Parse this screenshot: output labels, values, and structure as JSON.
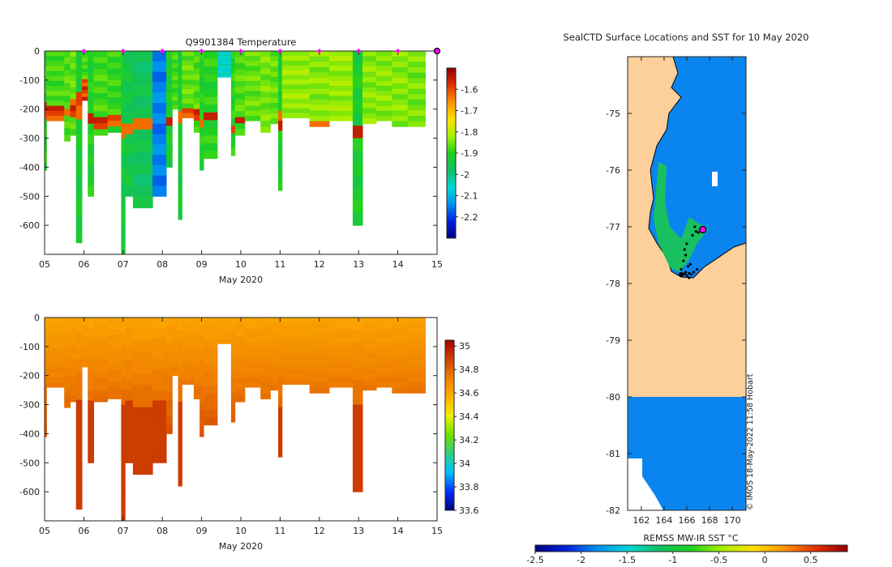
{
  "colors": {
    "land": "#fccf9b",
    "ocean": "#0a85f0",
    "marker": "#ff00ff",
    "temp_stops": [
      "#000080",
      "#0020e0",
      "#0090f0",
      "#00d8d8",
      "#10c060",
      "#20d020",
      "#a8f000",
      "#ffe000",
      "#ff9000",
      "#e03000",
      "#900000"
    ],
    "sal_stops": [
      "#000080",
      "#0030ff",
      "#00c0ff",
      "#30d080",
      "#70e000",
      "#f0f000",
      "#ffb000",
      "#f08000",
      "#d04000",
      "#a00000"
    ]
  },
  "chart_data": [
    {
      "type": "heatmap",
      "id": "temperature",
      "title": "Q9901384  Temperature",
      "xlabel": "May 2020",
      "ylabel": "",
      "xlim": [
        5,
        15
      ],
      "ylim": [
        -700,
        0
      ],
      "xticks": [
        "05",
        "06",
        "07",
        "08",
        "09",
        "10",
        "11",
        "12",
        "13",
        "14",
        "15"
      ],
      "yticks": [
        "0",
        "-100",
        "-200",
        "-300",
        "-400",
        "-500",
        "-600"
      ],
      "colorbar": {
        "min": -2.3,
        "max": -1.5,
        "ticks": [
          "-1.6",
          "-1.7",
          "-1.8",
          "-1.9",
          "-2",
          "-2.1",
          "-2.2"
        ]
      },
      "markers_x": [
        6,
        7,
        8,
        9,
        10,
        11,
        12,
        13,
        14
      ],
      "last_marker_x": 15,
      "profiles": [
        {
          "x": 5.0,
          "w": 0.05,
          "bottom": -410,
          "v": -1.9,
          "warm": [
            -230,
            -190
          ]
        },
        {
          "x": 5.05,
          "w": 0.45,
          "bottom": -240,
          "v": -1.88,
          "warm": [
            -240,
            -190
          ]
        },
        {
          "x": 5.5,
          "w": 0.15,
          "bottom": -310,
          "v": -1.87,
          "warm": [
            -230,
            -200
          ]
        },
        {
          "x": 5.65,
          "w": 0.15,
          "bottom": -290,
          "v": -1.86,
          "warm": [
            -220,
            -170
          ]
        },
        {
          "x": 5.8,
          "w": 0.15,
          "bottom": -660,
          "v": -1.93,
          "warm": [
            -220,
            -130
          ]
        },
        {
          "x": 5.95,
          "w": 0.15,
          "bottom": -170,
          "v": -1.88,
          "warm": [
            -170,
            -100
          ]
        },
        {
          "x": 6.1,
          "w": 0.15,
          "bottom": -500,
          "v": -1.91,
          "warm": [
            -260,
            -210
          ]
        },
        {
          "x": 6.25,
          "w": 0.35,
          "bottom": -290,
          "v": -1.88,
          "warm": [
            -270,
            -220
          ]
        },
        {
          "x": 6.6,
          "w": 0.35,
          "bottom": -280,
          "v": -1.89,
          "warm": [
            -260,
            -220
          ]
        },
        {
          "x": 6.95,
          "w": 0.1,
          "bottom": -700,
          "v": -1.94,
          "warm": [
            -280,
            -230
          ]
        },
        {
          "x": 7.05,
          "w": 0.2,
          "bottom": -500,
          "v": -1.95,
          "warm": [
            -280,
            -250
          ]
        },
        {
          "x": 7.25,
          "w": 0.5,
          "bottom": -540,
          "v": -1.97,
          "warm": [
            -280,
            -220
          ]
        },
        {
          "x": 7.75,
          "w": 0.35,
          "bottom": -500,
          "v": -2.15,
          "warm": null
        },
        {
          "x": 8.1,
          "w": 0.15,
          "bottom": -400,
          "v": -1.92,
          "warm": [
            -260,
            -220
          ]
        },
        {
          "x": 8.25,
          "w": 0.15,
          "bottom": -200,
          "v": -1.88,
          "warm": null
        },
        {
          "x": 8.4,
          "w": 0.1,
          "bottom": -580,
          "v": -1.93,
          "warm": [
            -240,
            -210
          ]
        },
        {
          "x": 8.5,
          "w": 0.3,
          "bottom": -230,
          "v": -1.86,
          "warm": [
            -230,
            -200
          ]
        },
        {
          "x": 8.8,
          "w": 0.15,
          "bottom": -280,
          "v": -1.87,
          "warm": [
            -240,
            -210
          ]
        },
        {
          "x": 8.95,
          "w": 0.1,
          "bottom": -410,
          "v": -1.91,
          "warm": [
            -260,
            -220
          ]
        },
        {
          "x": 9.05,
          "w": 0.35,
          "bottom": -370,
          "v": -1.9,
          "warm": [
            -250,
            -220
          ]
        },
        {
          "x": 9.4,
          "w": 0.35,
          "bottom": -90,
          "v": -2.05,
          "warm": null
        },
        {
          "x": 9.75,
          "w": 0.1,
          "bottom": -360,
          "v": -1.9,
          "warm": [
            -290,
            -250
          ]
        },
        {
          "x": 9.85,
          "w": 0.25,
          "bottom": -290,
          "v": -1.87,
          "warm": [
            -250,
            -220
          ]
        },
        {
          "x": 10.1,
          "w": 0.4,
          "bottom": -240,
          "v": -1.86,
          "warm": null
        },
        {
          "x": 10.5,
          "w": 0.25,
          "bottom": -280,
          "v": -1.85,
          "warm": null
        },
        {
          "x": 10.75,
          "w": 0.25,
          "bottom": -250,
          "v": -1.86,
          "warm": null
        },
        {
          "x": 10.95,
          "w": 0.1,
          "bottom": -480,
          "v": -1.92,
          "warm": [
            -260,
            -220
          ]
        },
        {
          "x": 11.05,
          "w": 0.7,
          "bottom": -230,
          "v": -1.83,
          "warm": null
        },
        {
          "x": 11.75,
          "w": 0.5,
          "bottom": -260,
          "v": -1.84,
          "warm": [
            -260,
            -240
          ]
        },
        {
          "x": 12.25,
          "w": 0.6,
          "bottom": -240,
          "v": -1.83,
          "warm": null
        },
        {
          "x": 12.85,
          "w": 0.25,
          "bottom": -600,
          "v": -1.92,
          "warm": [
            -300,
            -260
          ]
        },
        {
          "x": 13.1,
          "w": 0.35,
          "bottom": -250,
          "v": -1.84,
          "warm": null
        },
        {
          "x": 13.45,
          "w": 0.4,
          "bottom": -240,
          "v": -1.84,
          "warm": null
        },
        {
          "x": 13.85,
          "w": 0.4,
          "bottom": -260,
          "v": -1.84,
          "warm": null
        },
        {
          "x": 14.25,
          "w": 0.45,
          "bottom": -260,
          "v": -1.85,
          "warm": null
        }
      ]
    },
    {
      "type": "heatmap",
      "id": "salinity",
      "title": "",
      "xlabel": "May 2020",
      "ylabel": "",
      "xlim": [
        5,
        15
      ],
      "ylim": [
        -700,
        0
      ],
      "xticks": [
        "05",
        "06",
        "07",
        "08",
        "09",
        "10",
        "11",
        "12",
        "13",
        "14",
        "15"
      ],
      "yticks": [
        "0",
        "-100",
        "-200",
        "-300",
        "-400",
        "-500",
        "-600"
      ],
      "colorbar": {
        "min": 33.6,
        "max": 35.05,
        "ticks": [
          "35",
          "34.8",
          "34.6",
          "34.4",
          "34.2",
          "34",
          "33.8",
          "33.6"
        ]
      },
      "profiles": "same as temperature"
    },
    {
      "type": "heatmap",
      "id": "sst-map",
      "title": "SealCTD Surface Locations and SST for 10 May 2020",
      "xlabel": "",
      "ylabel": "",
      "xlim": [
        160.8,
        171.2
      ],
      "ylim": [
        -82,
        -74
      ],
      "xticks": [
        "162",
        "164",
        "166",
        "168",
        "170"
      ],
      "yticks": [
        "-75",
        "-76",
        "-77",
        "-78",
        "-79",
        "-80",
        "-81",
        "-82"
      ],
      "colorbar": {
        "label": "REMSS MW-IR SST °C",
        "min": -2.5,
        "max": 0.9,
        "ticks": [
          "-2.5",
          "-2",
          "-1.5",
          "-1",
          "-0.5",
          "0",
          "0.5"
        ]
      },
      "last_location": [
        167.4,
        -77.05
      ],
      "credit": "© IMOS 18-May-2022 11:58 Hobart"
    }
  ]
}
